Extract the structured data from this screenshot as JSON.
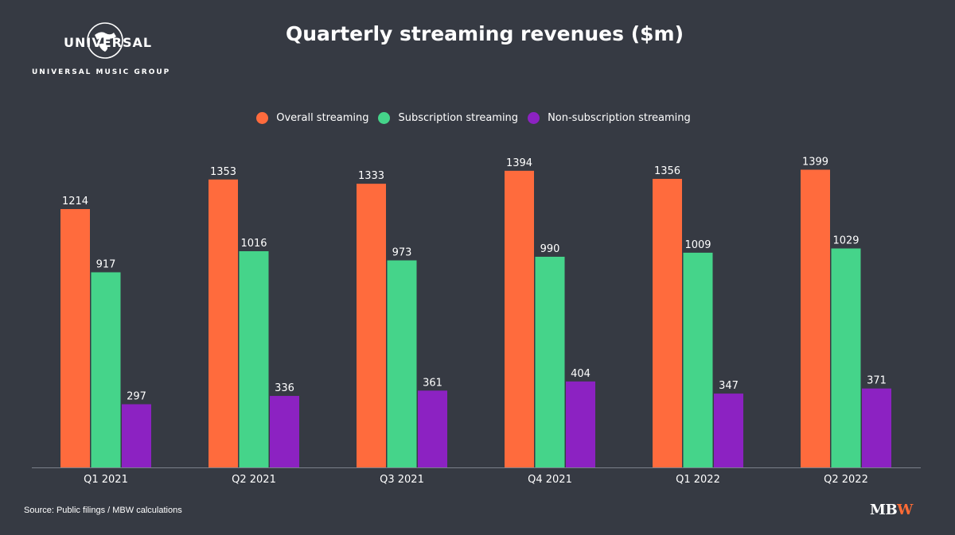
{
  "brand": {
    "logo_word": "UNIVERSAL",
    "logo_sub": "UNIVERSAL MUSIC GROUP",
    "watermark_m": "M",
    "watermark_b": "B",
    "watermark_w": "W"
  },
  "source": "Source: Public filings / MBW calculations",
  "colors": {
    "background": "#363a43",
    "overall": "#ff6b3d",
    "subscription": "#45d48a",
    "non_subscription": "#8c22c2",
    "axis": "#7a7f8a"
  },
  "chart_data": {
    "type": "bar",
    "title": "Quarterly streaming revenues ($m)",
    "xlabel": "",
    "ylabel": "",
    "ylim": [
      0,
      1500
    ],
    "grid": false,
    "legend_position": "top-center",
    "categories": [
      "Q1 2021",
      "Q2 2021",
      "Q3 2021",
      "Q4 2021",
      "Q1 2022",
      "Q2 2022"
    ],
    "series": [
      {
        "name": "Overall streaming",
        "color": "#ff6b3d",
        "values": [
          1214,
          1353,
          1333,
          1394,
          1356,
          1399
        ]
      },
      {
        "name": "Subscription streaming",
        "color": "#45d48a",
        "values": [
          917,
          1016,
          973,
          990,
          1009,
          1029
        ]
      },
      {
        "name": "Non-subscription streaming",
        "color": "#8c22c2",
        "values": [
          297,
          336,
          361,
          404,
          347,
          371
        ]
      }
    ]
  }
}
